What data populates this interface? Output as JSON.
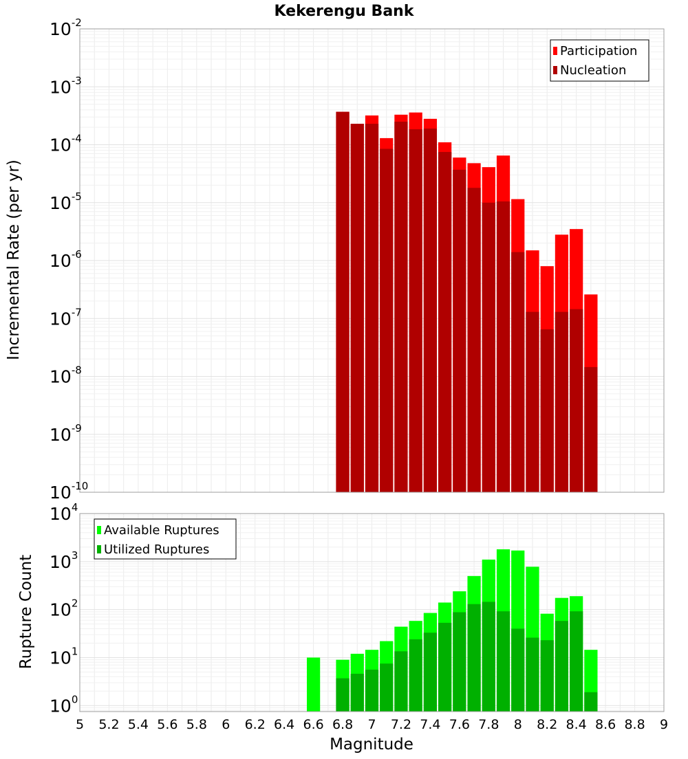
{
  "chart_data": [
    {
      "type": "bar",
      "title": "Kekerengu Bank",
      "xlabel": "",
      "ylabel": "Incremental Rate (per yr)",
      "xlim": [
        5,
        9
      ],
      "ylim": [
        1e-10,
        0.01
      ],
      "yscale": "log",
      "grid": true,
      "legend_position": "top-right",
      "x": [
        6.8,
        6.9,
        7.0,
        7.1,
        7.2,
        7.3,
        7.4,
        7.5,
        7.6,
        7.7,
        7.8,
        7.9,
        8.0,
        8.1,
        8.2,
        8.3,
        8.4,
        8.5
      ],
      "series": [
        {
          "name": "Participation",
          "color": "#ff0000",
          "values": [
            0.00037,
            0.00023,
            0.00032,
            0.00013,
            0.00033,
            0.00036,
            0.00028,
            0.00011,
            6e-05,
            4.8e-05,
            4.1e-05,
            6.5e-05,
            1.15e-05,
            1.5e-06,
            8e-07,
            2.8e-06,
            3.5e-06,
            2.6e-07
          ]
        },
        {
          "name": "Nucleation",
          "color": "#b00000",
          "values": [
            0.00037,
            0.00023,
            0.00023,
            8.5e-05,
            0.00025,
            0.000185,
            0.00019,
            7.5e-05,
            3.7e-05,
            1.8e-05,
            1e-05,
            1.05e-05,
            1.4e-06,
            1.3e-07,
            6.5e-08,
            1.3e-07,
            1.45e-07,
            1.45e-08
          ]
        }
      ]
    },
    {
      "type": "bar",
      "title": "",
      "xlabel": "Magnitude",
      "ylabel": "Rupture Count",
      "xlim": [
        5,
        9
      ],
      "ylim": [
        0.75,
        10000
      ],
      "yscale": "log",
      "grid": true,
      "legend_position": "top-left",
      "x": [
        6.6,
        6.8,
        6.9,
        7.0,
        7.1,
        7.2,
        7.3,
        7.4,
        7.5,
        7.6,
        7.7,
        7.8,
        7.9,
        8.0,
        8.1,
        8.2,
        8.3,
        8.4,
        8.5
      ],
      "series": [
        {
          "name": "Available Ruptures",
          "color": "#00ff00",
          "values": [
            10,
            9,
            12,
            14.5,
            22,
            44,
            58,
            85,
            140,
            240,
            500,
            1100,
            1800,
            1700,
            780,
            82,
            175,
            190,
            14.5
          ]
        },
        {
          "name": "Utilized Ruptures",
          "color": "#00b000",
          "values": [
            0,
            3.7,
            4.6,
            5.6,
            7.5,
            13.5,
            24,
            33,
            53,
            88,
            130,
            145,
            92,
            40,
            26,
            23,
            58,
            92,
            1.9
          ]
        }
      ]
    }
  ],
  "x_tick_labels": [
    "5",
    "5.2",
    "5.4",
    "5.6",
    "5.8",
    "6",
    "6.2",
    "6.4",
    "6.6",
    "6.8",
    "7",
    "7.2",
    "7.4",
    "7.6",
    "7.8",
    "8",
    "8.2",
    "8.4",
    "8.6",
    "8.8",
    "9"
  ]
}
